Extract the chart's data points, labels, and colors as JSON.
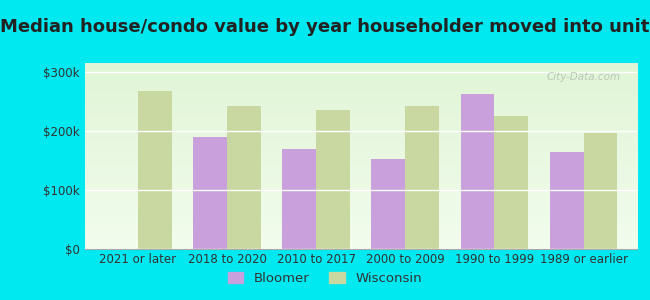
{
  "title": "Median house/condo value by year householder moved into unit",
  "categories": [
    "2021 or later",
    "2018 to 2020",
    "2010 to 2017",
    "2000 to 2009",
    "1990 to 1999",
    "1989 or earlier"
  ],
  "bloomer": [
    null,
    190000,
    170000,
    152000,
    262000,
    165000
  ],
  "wisconsin": [
    268000,
    243000,
    235000,
    242000,
    226000,
    196000
  ],
  "bloomer_color": "#c9a0dc",
  "wisconsin_color": "#c8d8a0",
  "background_outer": "#00e8f0",
  "background_chart_top": "#f5faf0",
  "background_chart_bottom": "#e8f4e0",
  "yticks": [
    0,
    100000,
    200000,
    300000
  ],
  "ytick_labels": [
    "$0",
    "$100k",
    "$200k",
    "$300k"
  ],
  "ylim": [
    0,
    315000
  ],
  "bar_width": 0.38,
  "title_fontsize": 13,
  "tick_fontsize": 8.5,
  "legend_fontsize": 9.5
}
